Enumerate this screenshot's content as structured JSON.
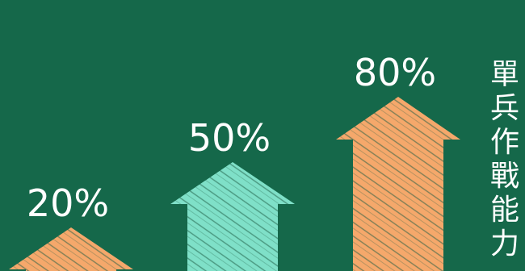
{
  "chart_data": {
    "type": "bar",
    "categories": [
      "",
      "",
      ""
    ],
    "values": [
      20,
      50,
      80
    ],
    "data_labels": [
      "20%",
      "50%",
      "80%"
    ],
    "colors": [
      "#f5a86b",
      "#7fe0c8",
      "#f5a86b"
    ],
    "ylim": [
      0,
      100
    ],
    "side_label": "單兵作戰能力"
  },
  "colors": {
    "background": "#15684a",
    "stroke_texture": "#1d5a43"
  }
}
